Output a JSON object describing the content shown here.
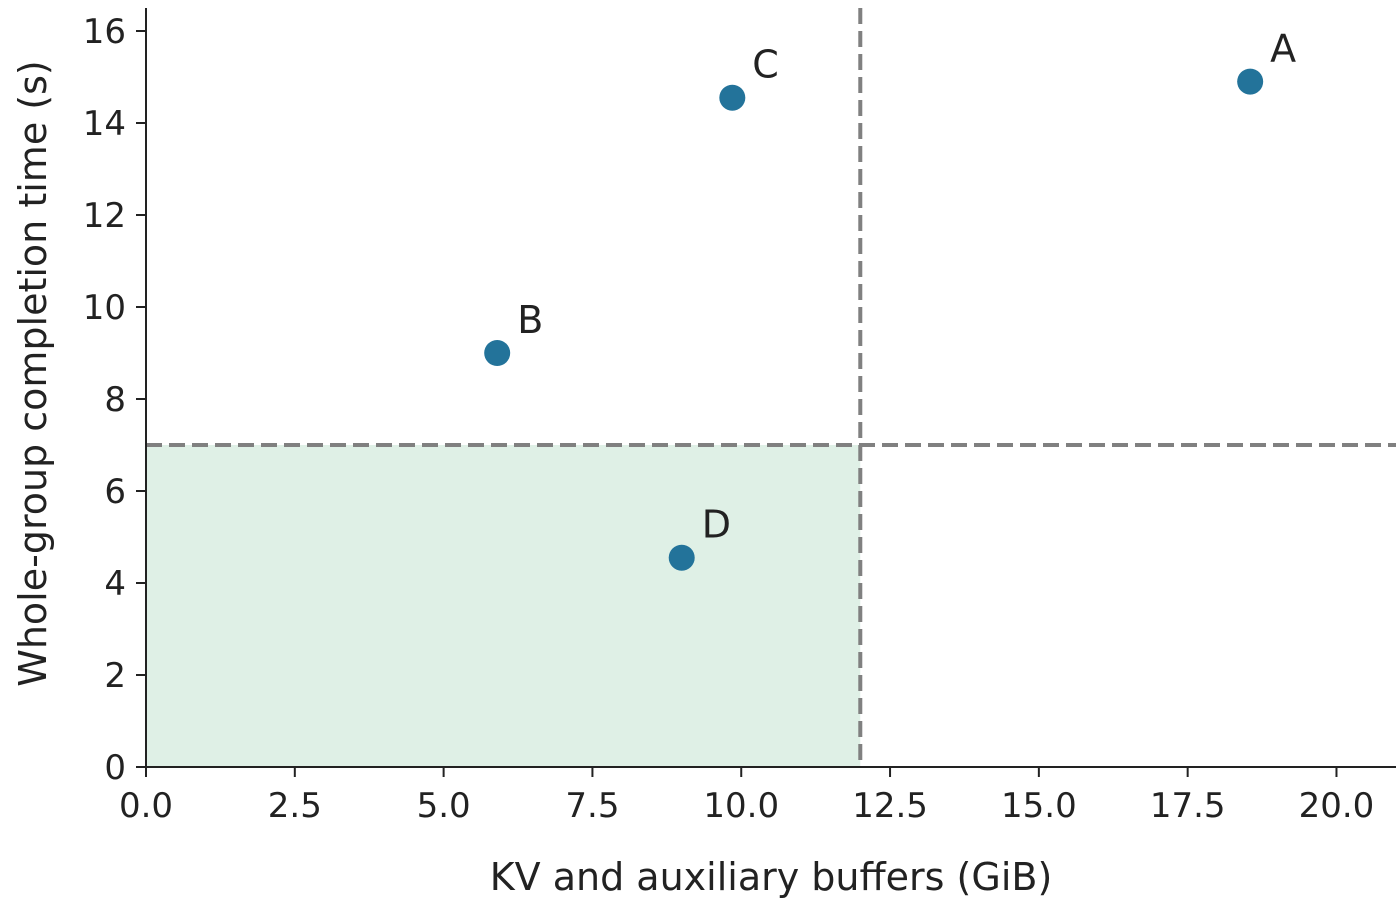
{
  "chart_data": {
    "type": "scatter",
    "xlabel": "KV and auxiliary buffers (GiB)",
    "ylabel": "Whole-group completion time (s)",
    "xlim": [
      0,
      21
    ],
    "ylim": [
      0,
      16.5
    ],
    "x_ticks": [
      0,
      2.5,
      5,
      7.5,
      10,
      12.5,
      15,
      17.5,
      20
    ],
    "x_tick_labels": [
      "0.0",
      "2.5",
      "5.0",
      "7.5",
      "10.0",
      "12.5",
      "15.0",
      "17.5",
      "20.0"
    ],
    "y_ticks": [
      0,
      2,
      4,
      6,
      8,
      10,
      12,
      14,
      16
    ],
    "y_tick_labels": [
      "0",
      "2",
      "4",
      "6",
      "8",
      "10",
      "12",
      "14",
      "16"
    ],
    "grid": false,
    "points": [
      {
        "label": "A",
        "x": 18.55,
        "y": 14.9
      },
      {
        "label": "B",
        "x": 5.9,
        "y": 9.0
      },
      {
        "label": "C",
        "x": 9.85,
        "y": 14.55
      },
      {
        "label": "D",
        "x": 9.0,
        "y": 4.55
      }
    ],
    "thresholds": {
      "x": 12.0,
      "y": 7.0
    },
    "feasible_region": {
      "x": [
        0,
        12.0
      ],
      "y": [
        0,
        7.0
      ]
    },
    "colors": {
      "point": "#23739a",
      "threshold": "#808080",
      "region": "#dff0e6",
      "axis": "#222222"
    }
  }
}
